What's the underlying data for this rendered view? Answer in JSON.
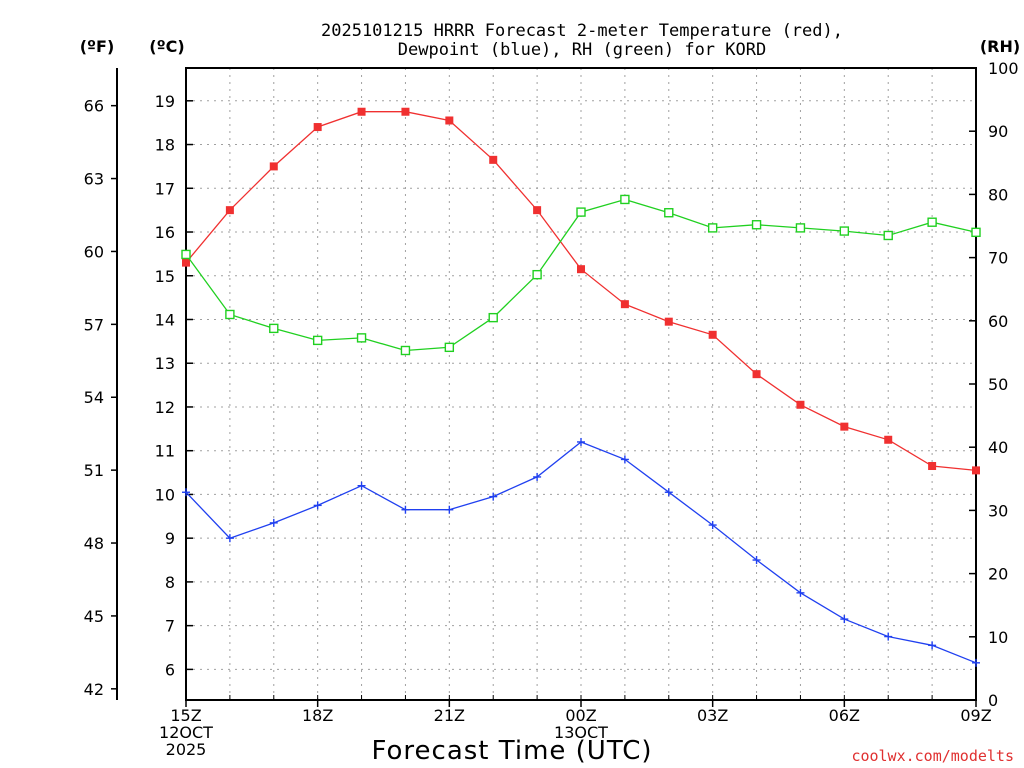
{
  "chart_data": {
    "type": "line",
    "title_lines": [
      "2025101215 HRRR Forecast 2-meter Temperature (red),",
      "Dewpoint (blue), RH (green) for KORD"
    ],
    "xlabel": "Forecast Time (UTC)",
    "credit": "coolwx.com/modelts",
    "unit_labels": {
      "fahrenheit": "(ºF)",
      "celsius": "(ºC)",
      "rh": "(RH)"
    },
    "x": [
      0,
      1,
      2,
      3,
      4,
      5,
      6,
      7,
      8,
      9,
      10,
      11,
      12,
      13,
      14,
      15,
      16,
      17,
      18
    ],
    "x_ticks": [
      {
        "x": 0,
        "lines": [
          "15Z",
          "12OCT",
          "2025"
        ]
      },
      {
        "x": 3,
        "lines": [
          "18Z"
        ]
      },
      {
        "x": 6,
        "lines": [
          "21Z"
        ]
      },
      {
        "x": 9,
        "lines": [
          "00Z",
          "13OCT"
        ]
      },
      {
        "x": 12,
        "lines": [
          "03Z"
        ]
      },
      {
        "x": 15,
        "lines": [
          "06Z"
        ]
      },
      {
        "x": 18,
        "lines": [
          "09Z"
        ]
      }
    ],
    "celsius_axis": {
      "ylim": [
        5.3,
        19.75
      ],
      "ticks": [
        6,
        7,
        8,
        9,
        10,
        11,
        12,
        13,
        14,
        15,
        16,
        17,
        18,
        19
      ]
    },
    "fahrenheit_axis": {
      "ticks": [
        42,
        45,
        48,
        51,
        54,
        57,
        60,
        63,
        66
      ]
    },
    "rh_axis": {
      "ylim": [
        0,
        100
      ],
      "ticks": [
        0,
        10,
        20,
        30,
        40,
        50,
        60,
        70,
        80,
        90,
        100
      ]
    },
    "series": [
      {
        "name": "2-meter Temperature",
        "axis": "celsius",
        "color": "#f03030",
        "marker": "filled-square",
        "values": [
          15.3,
          16.5,
          17.5,
          18.4,
          18.75,
          18.75,
          18.55,
          17.65,
          16.5,
          15.15,
          14.35,
          13.95,
          13.65,
          12.75,
          12.05,
          11.55,
          11.25,
          10.65,
          10.55
        ]
      },
      {
        "name": "Dewpoint",
        "axis": "celsius",
        "color": "#2040f0",
        "marker": "plus",
        "values": [
          10.05,
          9.0,
          9.35,
          9.75,
          10.2,
          9.65,
          9.65,
          9.95,
          10.4,
          11.2,
          10.8,
          10.05,
          9.3,
          8.5,
          7.75,
          7.15,
          6.75,
          6.55,
          6.15
        ]
      },
      {
        "name": "RH",
        "axis": "rh",
        "color": "#20d020",
        "marker": "open-square",
        "values": [
          70.5,
          61.0,
          58.8,
          56.9,
          57.3,
          55.3,
          55.8,
          60.5,
          67.3,
          77.2,
          79.2,
          77.1,
          74.7,
          75.2,
          74.7,
          74.2,
          73.5,
          75.6,
          74.0
        ]
      }
    ]
  }
}
